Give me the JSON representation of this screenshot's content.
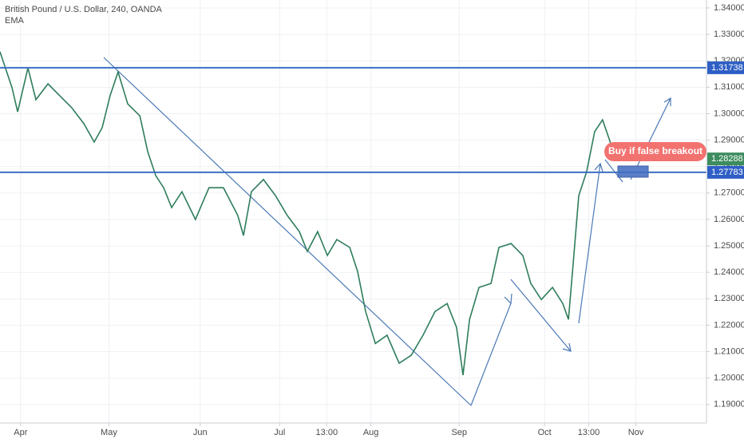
{
  "chart_data": {
    "type": "line",
    "title": "British Pound / U.S. Dollar, 240, OANDA",
    "indicator": "EMA",
    "color": "#2e7d5b",
    "x": [
      0,
      4.1,
      6,
      9.5,
      12.2,
      16.3,
      20.3,
      24.4,
      28.5,
      32,
      34.7,
      37.4,
      40.1,
      43.4,
      47.5,
      50.2,
      52.9,
      55.6,
      58.3,
      61.8,
      66.4,
      71,
      75.9,
      80.8,
      82.7,
      85.4,
      89.5,
      93.6,
      97.6,
      101.7,
      104.4,
      107.9,
      111.2,
      114.4,
      118.8,
      121.5,
      124.2,
      127.5,
      131.5,
      135.6,
      139.7,
      143.7,
      147.8,
      151.9,
      155.1,
      157.3,
      159.5,
      162.7,
      166.8,
      169.5,
      173.6,
      177.6,
      180.3,
      183.9,
      187.7,
      191.2,
      193.1,
      194.7,
      196.6,
      199.3,
      202,
      204.7,
      207.5,
      209.4
    ],
    "values": [
      1.3234,
      1.3098,
      1.3007,
      1.3173,
      1.3053,
      1.3113,
      1.3068,
      1.3022,
      1.2962,
      1.2893,
      1.2947,
      1.3068,
      1.3158,
      1.3037,
      1.2992,
      1.2856,
      1.2766,
      1.272,
      1.2645,
      1.2705,
      1.26,
      1.272,
      1.272,
      1.2615,
      1.2539,
      1.2705,
      1.2751,
      1.269,
      1.2615,
      1.2554,
      1.2479,
      1.2554,
      1.2464,
      1.2524,
      1.2494,
      1.2403,
      1.2252,
      1.2131,
      1.2162,
      1.2056,
      1.2086,
      1.2162,
      1.2252,
      1.2282,
      1.2192,
      1.2011,
      1.2222,
      1.2343,
      1.2358,
      1.2494,
      1.2509,
      1.2464,
      1.2358,
      1.2297,
      1.2343,
      1.2282,
      1.2222,
      1.2433,
      1.269,
      1.2781,
      1.2932,
      1.2977,
      1.2886,
      1.2826
    ],
    "xlim": [
      0,
      240
    ],
    "ylim": [
      1.183,
      1.343
    ],
    "xticks": [
      {
        "value": 7,
        "label": "Apr"
      },
      {
        "value": 37,
        "label": "May"
      },
      {
        "value": 68,
        "label": "Jun"
      },
      {
        "value": 95,
        "label": "Jul"
      },
      {
        "value": 111,
        "label": "13:00"
      },
      {
        "value": 126,
        "label": "Aug"
      },
      {
        "value": 156,
        "label": "Sep"
      },
      {
        "value": 185,
        "label": "Oct"
      },
      {
        "value": 200,
        "label": "13:00"
      },
      {
        "value": 216,
        "label": "Nov"
      }
    ],
    "yticks": [
      {
        "value": 1.19,
        "label": "1.19000"
      },
      {
        "value": 1.2,
        "label": "1.20000"
      },
      {
        "value": 1.21,
        "label": "1.21000"
      },
      {
        "value": 1.22,
        "label": "1.22000"
      },
      {
        "value": 1.23,
        "label": "1.23000"
      },
      {
        "value": 1.24,
        "label": "1.24000"
      },
      {
        "value": 1.25,
        "label": "1.25000"
      },
      {
        "value": 1.26,
        "label": "1.26000"
      },
      {
        "value": 1.27,
        "label": "1.27000"
      },
      {
        "value": 1.28,
        "label": "1.28000"
      },
      {
        "value": 1.29,
        "label": "1.29000"
      },
      {
        "value": 1.3,
        "label": "1.30000"
      },
      {
        "value": 1.31,
        "label": "1.31000"
      },
      {
        "value": 1.32,
        "label": "1.32000"
      },
      {
        "value": 1.33,
        "label": "1.33000"
      },
      {
        "value": 1.34,
        "label": "1.34000"
      }
    ],
    "grid": true,
    "levels": [
      1.31738,
      1.27783
    ],
    "last_price": 1.28288,
    "annotation": "Buy if false breakout"
  }
}
